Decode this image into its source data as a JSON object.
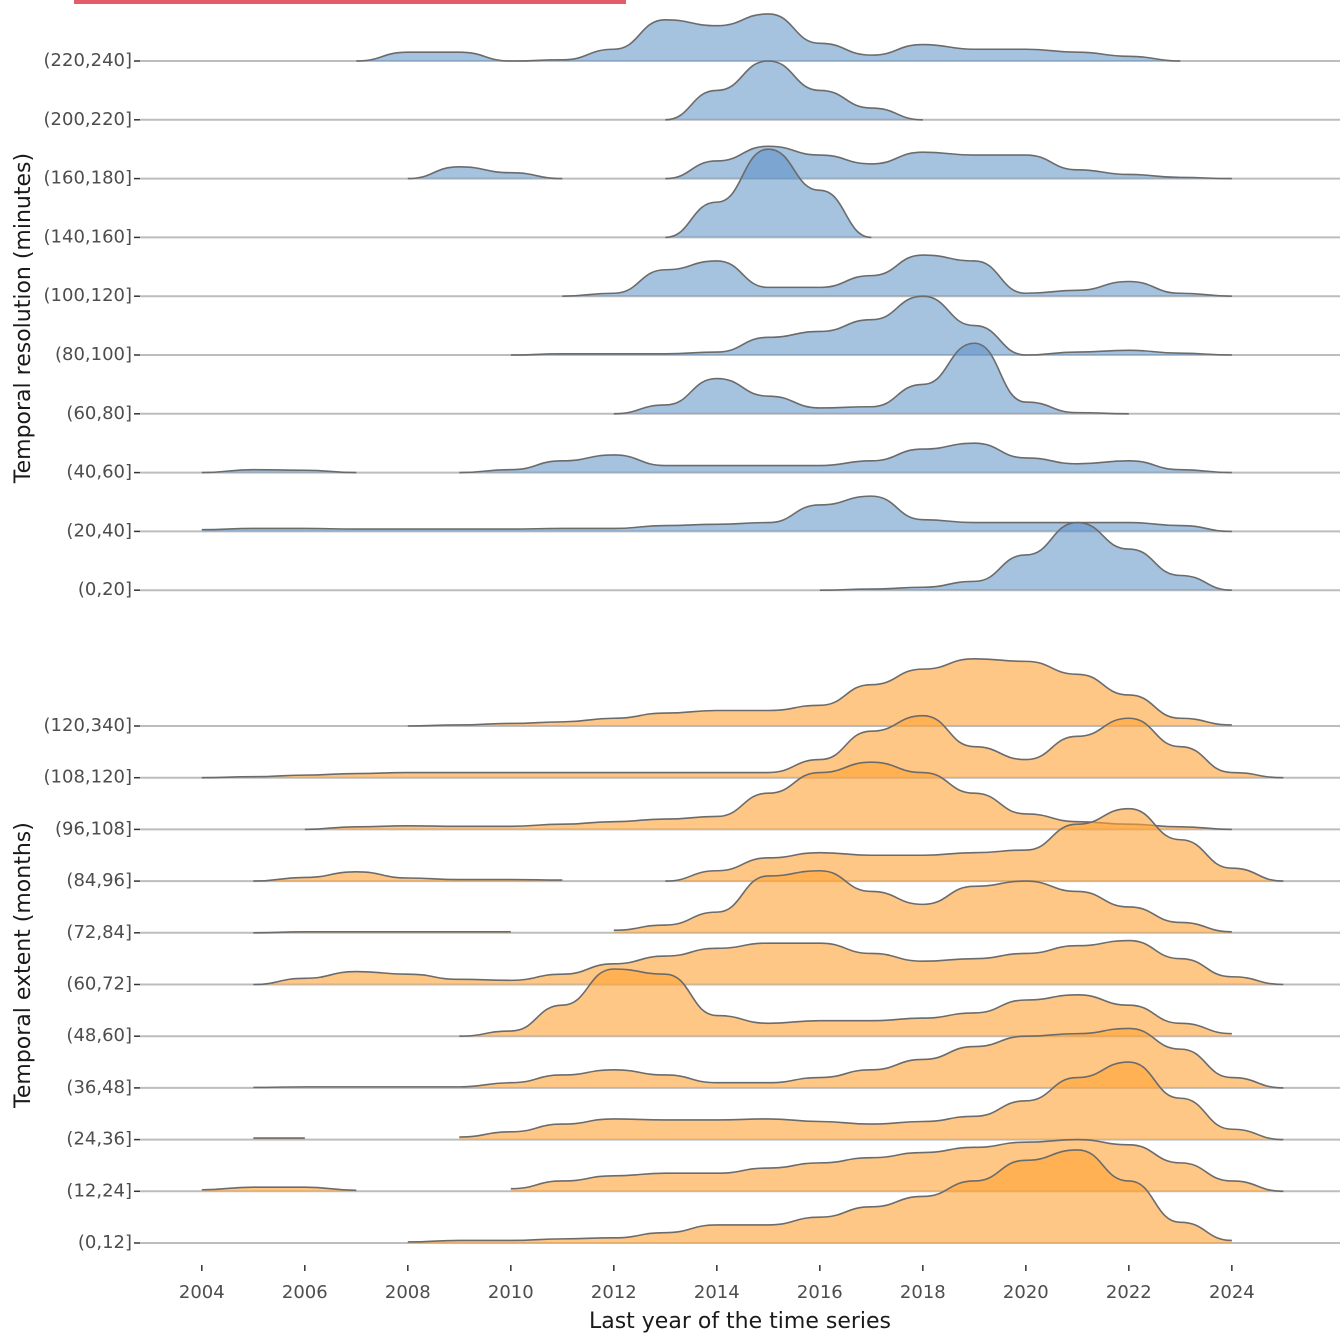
{
  "chart_data": [
    {
      "type": "ridgeline",
      "ylabel": "Temporal resolution (minutes)",
      "xlim": [
        2002.8,
        2026.1
      ],
      "color": "#5b8fc4",
      "alpha": 0.55,
      "x": [
        2004,
        2005,
        2006,
        2007,
        2008,
        2009,
        2010,
        2011,
        2012,
        2013,
        2014,
        2015,
        2016,
        2017,
        2018,
        2019,
        2020,
        2021,
        2022,
        2023,
        2024,
        2025
      ],
      "series": [
        {
          "name": "(220,240]",
          "values": [
            null,
            null,
            null,
            0,
            0.15,
            0.15,
            0,
            0.02,
            0.2,
            0.7,
            0.6,
            0.8,
            0.3,
            0.1,
            0.28,
            0.2,
            0.2,
            0.15,
            0.08,
            0,
            null,
            null
          ]
        },
        {
          "name": "(200,220]",
          "values": [
            null,
            null,
            null,
            null,
            null,
            null,
            null,
            null,
            null,
            0,
            0.5,
            1.0,
            0.5,
            0.2,
            0,
            null,
            null,
            null,
            null,
            null,
            null,
            null
          ]
        },
        {
          "name": "(160,180]",
          "values": [
            null,
            null,
            null,
            null,
            0,
            0.2,
            0.1,
            0,
            null,
            0,
            0.3,
            0.55,
            0.4,
            0.25,
            0.45,
            0.4,
            0.4,
            0.15,
            0.07,
            0.02,
            0,
            null
          ]
        },
        {
          "name": "(140,160]",
          "values": [
            null,
            null,
            null,
            null,
            null,
            null,
            null,
            null,
            null,
            0,
            0.6,
            1.5,
            0.8,
            0,
            null,
            null,
            null,
            null,
            null,
            null,
            null,
            null
          ]
        },
        {
          "name": "(100,120]",
          "values": [
            null,
            null,
            null,
            null,
            null,
            null,
            null,
            0,
            0.05,
            0.45,
            0.6,
            0.15,
            0.15,
            0.35,
            0.7,
            0.6,
            0.05,
            0.1,
            0.25,
            0.05,
            0,
            null
          ]
        },
        {
          "name": "(80,100]",
          "values": [
            null,
            null,
            null,
            null,
            null,
            null,
            0,
            0.02,
            0.02,
            0.02,
            0.05,
            0.3,
            0.4,
            0.6,
            1.0,
            0.5,
            0,
            0.05,
            0.08,
            0.03,
            0,
            null
          ]
        },
        {
          "name": "(60,80]",
          "values": [
            null,
            null,
            null,
            null,
            null,
            null,
            null,
            null,
            0,
            0.15,
            0.6,
            0.3,
            0.1,
            0.12,
            0.5,
            1.2,
            0.2,
            0.02,
            0,
            null,
            null,
            null
          ]
        },
        {
          "name": "(40,60]",
          "values": [
            0,
            0.05,
            0.04,
            0,
            null,
            0,
            0.05,
            0.2,
            0.3,
            0.12,
            0.12,
            0.12,
            0.12,
            0.2,
            0.4,
            0.5,
            0.25,
            0.15,
            0.2,
            0.05,
            0,
            null
          ]
        },
        {
          "name": "(20,40]",
          "values": [
            0.03,
            0.05,
            0.05,
            0.04,
            0.04,
            0.04,
            0.04,
            0.05,
            0.05,
            0.1,
            0.12,
            0.15,
            0.45,
            0.6,
            0.2,
            0.15,
            0.15,
            0.15,
            0.15,
            0.1,
            0,
            null
          ]
        },
        {
          "name": "(0,20]",
          "values": [
            null,
            null,
            null,
            null,
            null,
            null,
            null,
            null,
            null,
            null,
            null,
            null,
            0,
            0.02,
            0.05,
            0.15,
            0.6,
            1.15,
            0.7,
            0.25,
            0,
            null
          ]
        }
      ]
    },
    {
      "type": "ridgeline",
      "ylabel": "Temporal extent (months)",
      "xlabel": "Last year of the time series",
      "xlim": [
        2002.8,
        2026.1
      ],
      "xticks": [
        2004,
        2006,
        2008,
        2010,
        2012,
        2014,
        2016,
        2018,
        2020,
        2022,
        2024
      ],
      "color": "#ffa133",
      "alpha": 0.6,
      "x": [
        2004,
        2005,
        2006,
        2007,
        2008,
        2009,
        2010,
        2011,
        2012,
        2013,
        2014,
        2015,
        2016,
        2017,
        2018,
        2019,
        2020,
        2021,
        2022,
        2023,
        2024,
        2025
      ],
      "series": [
        {
          "name": "(120,340]",
          "values": [
            null,
            null,
            null,
            null,
            0,
            0.02,
            0.05,
            0.08,
            0.15,
            0.25,
            0.3,
            0.3,
            0.4,
            0.8,
            1.1,
            1.3,
            1.25,
            1.0,
            0.6,
            0.15,
            0.02,
            null
          ]
        },
        {
          "name": "(108,120]",
          "values": [
            0,
            0.02,
            0.05,
            0.08,
            0.1,
            0.1,
            0.1,
            0.1,
            0.1,
            0.1,
            0.1,
            0.1,
            0.35,
            0.9,
            1.2,
            0.6,
            0.35,
            0.8,
            1.15,
            0.6,
            0.1,
            0
          ]
        },
        {
          "name": "(96,108]",
          "values": [
            null,
            null,
            0,
            0.05,
            0.07,
            0.06,
            0.06,
            0.1,
            0.15,
            0.2,
            0.25,
            0.7,
            1.1,
            1.3,
            1.1,
            0.7,
            0.3,
            0.15,
            0.1,
            0.05,
            0,
            null
          ]
        },
        {
          "name": "(84,96]",
          "values": [
            null,
            0,
            0.07,
            0.18,
            0.06,
            0.03,
            0.03,
            0.02,
            null,
            0,
            0.2,
            0.45,
            0.55,
            0.5,
            0.5,
            0.55,
            0.6,
            1.1,
            1.4,
            0.8,
            0.25,
            0
          ]
        },
        {
          "name": "(72,84]",
          "values": [
            null,
            0,
            0.02,
            0.02,
            0.02,
            0.02,
            0.02,
            null,
            0.05,
            0.15,
            0.4,
            1.1,
            1.2,
            0.8,
            0.55,
            0.9,
            1.0,
            0.8,
            0.5,
            0.2,
            0.02,
            null
          ]
        },
        {
          "name": "(60,72]",
          "values": [
            null,
            0,
            0.12,
            0.25,
            0.2,
            0.1,
            0.08,
            0.2,
            0.4,
            0.55,
            0.7,
            0.8,
            0.8,
            0.6,
            0.45,
            0.5,
            0.6,
            0.75,
            0.85,
            0.5,
            0.15,
            0
          ]
        },
        {
          "name": "(48,60]",
          "values": [
            null,
            null,
            null,
            null,
            null,
            0,
            0.1,
            0.6,
            1.3,
            1.2,
            0.4,
            0.25,
            0.3,
            0.3,
            0.35,
            0.45,
            0.7,
            0.8,
            0.6,
            0.25,
            0.05,
            null
          ]
        },
        {
          "name": "(36,48]",
          "values": [
            null,
            0.01,
            0.02,
            0.02,
            0.02,
            0.02,
            0.1,
            0.25,
            0.35,
            0.25,
            0.1,
            0.1,
            0.2,
            0.35,
            0.55,
            0.8,
            1.0,
            1.05,
            1.15,
            0.75,
            0.2,
            0
          ]
        },
        {
          "name": "(24,36]",
          "values": [
            null,
            0.03,
            0.03,
            null,
            null,
            0.05,
            0.15,
            0.3,
            0.4,
            0.38,
            0.38,
            0.4,
            0.35,
            0.3,
            0.35,
            0.45,
            0.75,
            1.2,
            1.5,
            0.8,
            0.2,
            0
          ]
        },
        {
          "name": "(12,24]",
          "values": [
            0.03,
            0.08,
            0.08,
            0.02,
            null,
            null,
            0.05,
            0.2,
            0.3,
            0.35,
            0.35,
            0.45,
            0.55,
            0.65,
            0.75,
            0.85,
            0.95,
            1.0,
            0.9,
            0.55,
            0.2,
            0
          ]
        },
        {
          "name": "(0,12]",
          "values": [
            null,
            null,
            null,
            null,
            0.02,
            0.05,
            0.05,
            0.08,
            0.1,
            0.2,
            0.35,
            0.35,
            0.5,
            0.7,
            0.9,
            1.2,
            1.6,
            1.8,
            1.2,
            0.4,
            0.05,
            null
          ]
        }
      ]
    }
  ]
}
